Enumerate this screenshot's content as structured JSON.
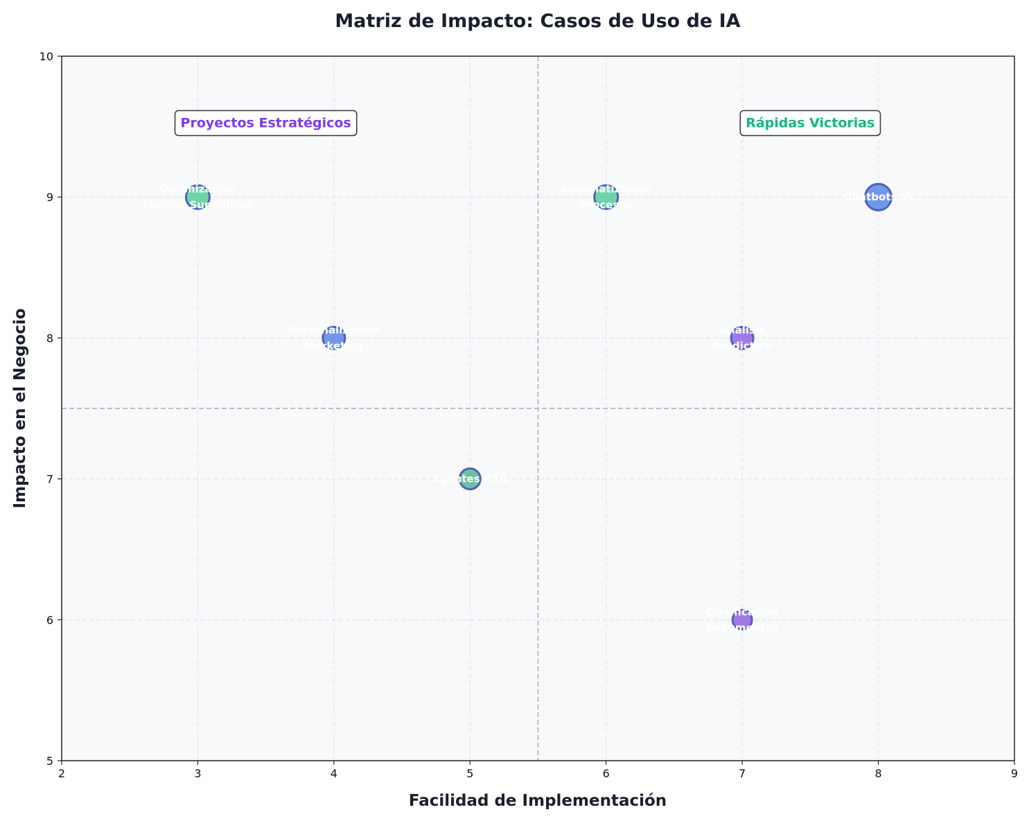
{
  "chart_data": {
    "type": "scatter",
    "title": "Matriz de Impacto: Casos de Uso de IA",
    "xlabel": "Facilidad de Implementación",
    "ylabel": "Impacto en el Negocio",
    "xlim": [
      2,
      9
    ],
    "ylim": [
      5,
      10
    ],
    "xticks": [
      2,
      3,
      4,
      5,
      6,
      7,
      8,
      9
    ],
    "yticks": [
      5,
      6,
      7,
      8,
      9,
      10
    ],
    "grid": true,
    "divider_x": 5.5,
    "divider_y": 7.5,
    "points": [
      {
        "label": [
          "Optimización",
          "Cadena Suministro"
        ],
        "x": 3,
        "y": 9,
        "color": "#6fd3a8",
        "size": 17
      },
      {
        "label": [
          "Automatización",
          "Procesos"
        ],
        "x": 6,
        "y": 9,
        "color": "#6fd3a8",
        "size": 17
      },
      {
        "label": [
          "Chatbots IA"
        ],
        "x": 8,
        "y": 9,
        "color": "#7297ea",
        "size": 19
      },
      {
        "label": [
          "Personalización",
          "Marketing"
        ],
        "x": 4,
        "y": 8,
        "color": "#7297ea",
        "size": 16
      },
      {
        "label": [
          "Análisis",
          "Predictivo"
        ],
        "x": 7,
        "y": 8,
        "color": "#a07be8",
        "size": 16
      },
      {
        "label": [
          "Agentes RAG"
        ],
        "x": 5,
        "y": 7,
        "color": "#6fc09f",
        "size": 15
      },
      {
        "label": [
          "Clasificación",
          "Documentos"
        ],
        "x": 7,
        "y": 6,
        "color": "#a07be8",
        "size": 14
      }
    ],
    "quadrant_labels": [
      {
        "text": "Proyectos Estratégicos",
        "x": 3.5,
        "y": 9.53,
        "color": "#7c3aed"
      },
      {
        "text": "Rápidas Victorias",
        "x": 7.5,
        "y": 9.53,
        "color": "#10b981"
      }
    ],
    "colors": {
      "plot_background": "#f8f9fb",
      "marker_edge": "#4a65b8",
      "grid": "#dde0e6",
      "divider": "#a8acb3"
    }
  }
}
